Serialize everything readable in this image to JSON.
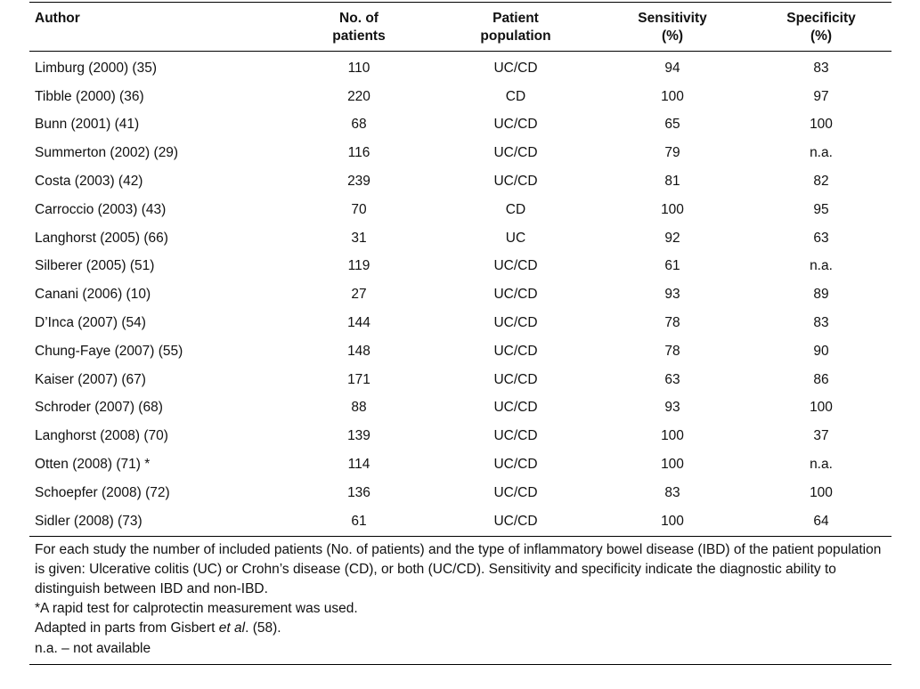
{
  "table": {
    "headers": {
      "author": "Author",
      "patients_line1": "No. of",
      "patients_line2": "patients",
      "population_line1": "Patient",
      "population_line2": "population",
      "sensitivity_line1": "Sensitivity",
      "sensitivity_line2": "(%)",
      "specificity_line1": "Specificity",
      "specificity_line2": "(%)"
    },
    "rows": [
      {
        "author": "Limburg (2000) (35)",
        "patients": "110",
        "population": "UC/CD",
        "sensitivity": "94",
        "specificity": "83"
      },
      {
        "author": "Tibble (2000) (36)",
        "patients": "220",
        "population": "CD",
        "sensitivity": "100",
        "specificity": "97"
      },
      {
        "author": "Bunn (2001) (41)",
        "patients": "68",
        "population": "UC/CD",
        "sensitivity": "65",
        "specificity": "100"
      },
      {
        "author": "Summerton (2002) (29)",
        "patients": "116",
        "population": "UC/CD",
        "sensitivity": "79",
        "specificity": "n.a."
      },
      {
        "author": "Costa (2003) (42)",
        "patients": "239",
        "population": "UC/CD",
        "sensitivity": "81",
        "specificity": "82"
      },
      {
        "author": "Carroccio (2003) (43)",
        "patients": "70",
        "population": "CD",
        "sensitivity": "100",
        "specificity": "95"
      },
      {
        "author": "Langhorst (2005) (66)",
        "patients": "31",
        "population": "UC",
        "sensitivity": "92",
        "specificity": "63"
      },
      {
        "author": "Silberer (2005) (51)",
        "patients": "119",
        "population": "UC/CD",
        "sensitivity": "61",
        "specificity": "n.a."
      },
      {
        "author": "Canani (2006) (10)",
        "patients": "27",
        "population": "UC/CD",
        "sensitivity": "93",
        "specificity": "89"
      },
      {
        "author": "D’Inca (2007) (54)",
        "patients": "144",
        "population": "UC/CD",
        "sensitivity": "78",
        "specificity": "83"
      },
      {
        "author": "Chung-Faye (2007) (55)",
        "patients": "148",
        "population": "UC/CD",
        "sensitivity": "78",
        "specificity": "90"
      },
      {
        "author": "Kaiser (2007) (67)",
        "patients": "171",
        "population": "UC/CD",
        "sensitivity": "63",
        "specificity": "86"
      },
      {
        "author": "Schroder (2007) (68)",
        "patients": "88",
        "population": "UC/CD",
        "sensitivity": "93",
        "specificity": "100"
      },
      {
        "author": "Langhorst (2008) (70)",
        "patients": "139",
        "population": "UC/CD",
        "sensitivity": "100",
        "specificity": "37"
      },
      {
        "author": "Otten (2008) (71) *",
        "patients": "114",
        "population": "UC/CD",
        "sensitivity": "100",
        "specificity": "n.a."
      },
      {
        "author": "Schoepfer (2008) (72)",
        "patients": "136",
        "population": "UC/CD",
        "sensitivity": "83",
        "specificity": "100"
      },
      {
        "author": "Sidler (2008) (73)",
        "patients": "61",
        "population": "UC/CD",
        "sensitivity": "100",
        "specificity": "64"
      }
    ]
  },
  "footnotes": {
    "description": "For each study the number of included patients (No. of patients) and the type of inflammatory bowel disease (IBD) of the patient population is given: Ulcerative colitis (UC) or Crohn’s disease (CD), or both (UC/CD). Sensitivity and specificity indicate the diagnostic ability to distinguish between IBD and non-IBD.",
    "rapid_test": "*A rapid test for calprotectin measurement was used.",
    "adapted_prefix": "Adapted in parts from Gisbert ",
    "adapted_italic": "et al",
    "adapted_suffix": ". (58).",
    "abbreviation": "n.a. – not available"
  }
}
